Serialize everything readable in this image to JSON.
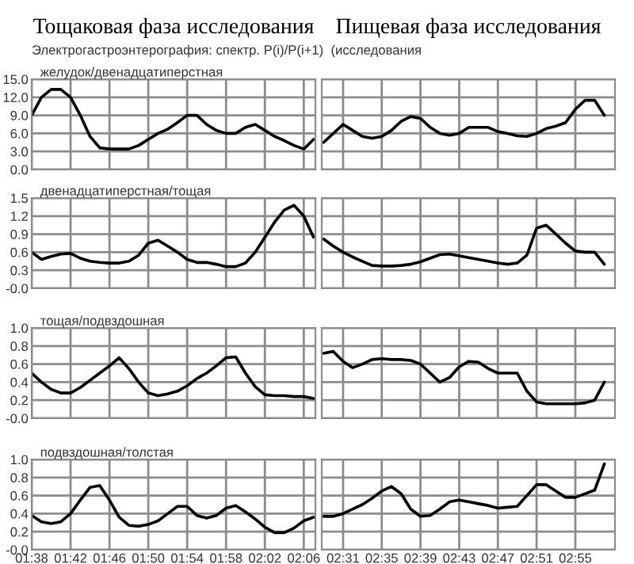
{
  "chart_data": [
    {
      "type": "line",
      "title": "Тощаковая фаза исследования",
      "subtitle": "желудок/двенадцатиперстная",
      "annotations": [
        "Электрогастроэнтерография: спектр. P(i)/P(i+1)  (исследования"
      ],
      "color": "#000000",
      "grid": true,
      "tick_labels": "y",
      "x": [
        1.6333,
        1.65,
        1.6667,
        1.6833,
        1.7,
        1.7167,
        1.7333,
        1.75,
        1.7667,
        1.7833,
        1.8,
        1.8167,
        1.8333,
        1.85,
        1.8667,
        1.8833,
        1.9,
        1.9167,
        1.9333,
        1.95,
        1.9667,
        1.9833,
        2,
        2.0167,
        2.0333,
        2.05,
        2.0667,
        2.0833,
        2.1,
        2.1167
      ],
      "values": [
        9.0,
        12.0,
        13.3,
        13.3,
        12.0,
        9.0,
        5.5,
        3.6,
        3.4,
        3.4,
        3.4,
        4.0,
        5.0,
        6.0,
        6.7,
        7.8,
        9.0,
        9.0,
        7.5,
        6.5,
        6.0,
        6.0,
        7.0,
        7.5,
        6.5,
        5.5,
        4.8,
        4.0,
        3.4,
        5.0
      ],
      "xlim": [
        1.6333,
        2.12
      ],
      "xticks": [
        {
          "value": 1.6333,
          "label": null
        },
        {
          "value": 1.7,
          "label": null
        },
        {
          "value": 1.7667,
          "label": null
        },
        {
          "value": 1.8333,
          "label": null
        },
        {
          "value": 1.9,
          "label": null
        },
        {
          "value": 1.9667,
          "label": null
        },
        {
          "value": 2.0333,
          "label": null
        },
        {
          "value": 2.1,
          "label": null
        }
      ],
      "ylim": [
        0,
        15
      ],
      "yticks": [
        {
          "value": 0,
          "label": "0.0"
        },
        {
          "value": 3,
          "label": "3.0"
        },
        {
          "value": 6,
          "label": "6.0"
        },
        {
          "value": 9,
          "label": "9.0"
        },
        {
          "value": 12,
          "label": "12.0"
        },
        {
          "value": 15,
          "label": "15.0"
        }
      ]
    },
    {
      "type": "line",
      "title": "Пищевая фаза исследования",
      "color": "#000000",
      "grid": true,
      "tick_labels": false,
      "x": [
        2.4833,
        2.5,
        2.5167,
        2.5333,
        2.55,
        2.5667,
        2.5833,
        2.6,
        2.6167,
        2.6333,
        2.65,
        2.6667,
        2.6833,
        2.7,
        2.7167,
        2.7333,
        2.75,
        2.7667,
        2.7833,
        2.8,
        2.8167,
        2.8333,
        2.85,
        2.8667,
        2.8833,
        2.9,
        2.9167,
        2.9333,
        2.95,
        2.9667
      ],
      "values": [
        4.5,
        6.0,
        7.5,
        6.5,
        5.5,
        5.2,
        5.5,
        6.5,
        8.0,
        8.8,
        8.5,
        7.0,
        6.0,
        5.7,
        6.0,
        7.0,
        7.0,
        7.0,
        6.3,
        6.0,
        5.6,
        5.5,
        6.0,
        6.8,
        7.2,
        7.8,
        10.0,
        11.5,
        11.5,
        9.0
      ],
      "xlim": [
        2.48,
        2.985
      ],
      "xticks": [
        {
          "value": 2.5167,
          "label": null
        },
        {
          "value": 2.5833,
          "label": null
        },
        {
          "value": 2.65,
          "label": null
        },
        {
          "value": 2.7167,
          "label": null
        },
        {
          "value": 2.7833,
          "label": null
        },
        {
          "value": 2.85,
          "label": null
        },
        {
          "value": 2.9167,
          "label": null
        }
      ],
      "ylim": [
        0,
        15
      ],
      "yticks": [
        {
          "value": 0,
          "label": null
        },
        {
          "value": 3,
          "label": null
        },
        {
          "value": 6,
          "label": null
        },
        {
          "value": 9,
          "label": null
        },
        {
          "value": 12,
          "label": null
        },
        {
          "value": 15,
          "label": null
        }
      ]
    },
    {
      "type": "line",
      "subtitle": "двенадцатиперстная/тощая",
      "color": "#000000",
      "grid": true,
      "tick_labels": "y",
      "x": [
        1.6333,
        1.65,
        1.6667,
        1.6833,
        1.7,
        1.7167,
        1.7333,
        1.75,
        1.7667,
        1.7833,
        1.8,
        1.8167,
        1.8333,
        1.85,
        1.8667,
        1.8833,
        1.9,
        1.9167,
        1.9333,
        1.95,
        1.9667,
        1.9833,
        2,
        2.0167,
        2.0333,
        2.05,
        2.0667,
        2.0833,
        2.1,
        2.1167
      ],
      "values": [
        0.6,
        0.48,
        0.53,
        0.57,
        0.58,
        0.5,
        0.45,
        0.43,
        0.42,
        0.42,
        0.45,
        0.55,
        0.75,
        0.8,
        0.7,
        0.6,
        0.48,
        0.43,
        0.43,
        0.4,
        0.36,
        0.36,
        0.42,
        0.6,
        0.85,
        1.1,
        1.3,
        1.38,
        1.2,
        0.85
      ],
      "xlim": [
        1.6333,
        2.12
      ],
      "xticks": [
        {
          "value": 1.6333,
          "label": null
        },
        {
          "value": 1.7,
          "label": null
        },
        {
          "value": 1.7667,
          "label": null
        },
        {
          "value": 1.8333,
          "label": null
        },
        {
          "value": 1.9,
          "label": null
        },
        {
          "value": 1.9667,
          "label": null
        },
        {
          "value": 2.0333,
          "label": null
        },
        {
          "value": 2.1,
          "label": null
        }
      ],
      "ylim": [
        0,
        1.5
      ],
      "yticks": [
        {
          "value": 0,
          "label": "-0.0"
        },
        {
          "value": 0.3,
          "label": "0.3"
        },
        {
          "value": 0.6,
          "label": "0.6"
        },
        {
          "value": 0.9,
          "label": "0.9"
        },
        {
          "value": 1.2,
          "label": "1.2"
        },
        {
          "value": 1.5,
          "label": "1.5"
        }
      ]
    },
    {
      "type": "line",
      "color": "#000000",
      "grid": true,
      "tick_labels": false,
      "x": [
        2.4833,
        2.5,
        2.5167,
        2.5333,
        2.55,
        2.5667,
        2.5833,
        2.6,
        2.6167,
        2.6333,
        2.65,
        2.6667,
        2.6833,
        2.7,
        2.7167,
        2.7333,
        2.75,
        2.7667,
        2.7833,
        2.8,
        2.8167,
        2.8333,
        2.85,
        2.8667,
        2.8833,
        2.9,
        2.9167,
        2.9333,
        2.95,
        2.9667
      ],
      "values": [
        0.82,
        0.7,
        0.6,
        0.52,
        0.45,
        0.38,
        0.37,
        0.37,
        0.38,
        0.4,
        0.44,
        0.5,
        0.56,
        0.57,
        0.54,
        0.51,
        0.48,
        0.45,
        0.42,
        0.4,
        0.42,
        0.55,
        1.0,
        1.05,
        0.9,
        0.75,
        0.62,
        0.6,
        0.6,
        0.4
      ],
      "xlim": [
        2.48,
        2.985
      ],
      "xticks": [
        {
          "value": 2.5167,
          "label": null
        },
        {
          "value": 2.5833,
          "label": null
        },
        {
          "value": 2.65,
          "label": null
        },
        {
          "value": 2.7167,
          "label": null
        },
        {
          "value": 2.7833,
          "label": null
        },
        {
          "value": 2.85,
          "label": null
        },
        {
          "value": 2.9167,
          "label": null
        }
      ],
      "ylim": [
        0,
        1.5
      ],
      "yticks": [
        {
          "value": 0,
          "label": null
        },
        {
          "value": 0.3,
          "label": null
        },
        {
          "value": 0.6,
          "label": null
        },
        {
          "value": 0.9,
          "label": null
        },
        {
          "value": 1.2,
          "label": null
        },
        {
          "value": 1.5,
          "label": null
        }
      ]
    },
    {
      "type": "line",
      "subtitle": "тощая/подвздошная",
      "color": "#000000",
      "grid": true,
      "tick_labels": "y",
      "x": [
        1.6333,
        1.65,
        1.6667,
        1.6833,
        1.7,
        1.7167,
        1.7333,
        1.75,
        1.7667,
        1.7833,
        1.8,
        1.8167,
        1.8333,
        1.85,
        1.8667,
        1.8833,
        1.9,
        1.9167,
        1.9333,
        1.95,
        1.9667,
        1.9833,
        2,
        2.0167,
        2.0333,
        2.05,
        2.0667,
        2.0833,
        2.1,
        2.1167
      ],
      "values": [
        0.5,
        0.4,
        0.32,
        0.28,
        0.28,
        0.34,
        0.42,
        0.5,
        0.58,
        0.67,
        0.55,
        0.4,
        0.28,
        0.25,
        0.27,
        0.3,
        0.36,
        0.44,
        0.5,
        0.58,
        0.67,
        0.68,
        0.5,
        0.35,
        0.26,
        0.25,
        0.25,
        0.24,
        0.24,
        0.22
      ],
      "xlim": [
        1.6333,
        2.12
      ],
      "xticks": [
        {
          "value": 1.6333,
          "label": null
        },
        {
          "value": 1.7,
          "label": null
        },
        {
          "value": 1.7667,
          "label": null
        },
        {
          "value": 1.8333,
          "label": null
        },
        {
          "value": 1.9,
          "label": null
        },
        {
          "value": 1.9667,
          "label": null
        },
        {
          "value": 2.0333,
          "label": null
        },
        {
          "value": 2.1,
          "label": null
        }
      ],
      "ylim": [
        0,
        1
      ],
      "yticks": [
        {
          "value": 0,
          "label": "-0.0"
        },
        {
          "value": 0.2,
          "label": "0.2"
        },
        {
          "value": 0.4,
          "label": "0.4"
        },
        {
          "value": 0.6,
          "label": "0.6"
        },
        {
          "value": 0.8,
          "label": "0.8"
        },
        {
          "value": 1,
          "label": "1.0"
        }
      ]
    },
    {
      "type": "line",
      "color": "#000000",
      "grid": true,
      "tick_labels": false,
      "x": [
        2.4833,
        2.5,
        2.5167,
        2.5333,
        2.55,
        2.5667,
        2.5833,
        2.6,
        2.6167,
        2.6333,
        2.65,
        2.6667,
        2.6833,
        2.7,
        2.7167,
        2.7333,
        2.75,
        2.7667,
        2.7833,
        2.8,
        2.8167,
        2.8333,
        2.85,
        2.8667,
        2.8833,
        2.9,
        2.9167,
        2.9333,
        2.95,
        2.9667
      ],
      "values": [
        0.72,
        0.74,
        0.63,
        0.56,
        0.6,
        0.65,
        0.66,
        0.65,
        0.65,
        0.64,
        0.6,
        0.5,
        0.4,
        0.45,
        0.57,
        0.63,
        0.62,
        0.55,
        0.5,
        0.5,
        0.5,
        0.3,
        0.18,
        0.16,
        0.16,
        0.16,
        0.16,
        0.17,
        0.2,
        0.4
      ],
      "xlim": [
        2.48,
        2.985
      ],
      "xticks": [
        {
          "value": 2.5167,
          "label": null
        },
        {
          "value": 2.5833,
          "label": null
        },
        {
          "value": 2.65,
          "label": null
        },
        {
          "value": 2.7167,
          "label": null
        },
        {
          "value": 2.7833,
          "label": null
        },
        {
          "value": 2.85,
          "label": null
        },
        {
          "value": 2.9167,
          "label": null
        }
      ],
      "ylim": [
        0,
        1
      ],
      "yticks": [
        {
          "value": 0,
          "label": null
        },
        {
          "value": 0.2,
          "label": null
        },
        {
          "value": 0.4,
          "label": null
        },
        {
          "value": 0.6,
          "label": null
        },
        {
          "value": 0.8,
          "label": null
        },
        {
          "value": 1,
          "label": null
        }
      ]
    },
    {
      "type": "line",
      "subtitle": "подвздошная/толстая",
      "color": "#000000",
      "grid": true,
      "x": [
        1.6333,
        1.65,
        1.6667,
        1.6833,
        1.7,
        1.7167,
        1.7333,
        1.75,
        1.7667,
        1.7833,
        1.8,
        1.8167,
        1.8333,
        1.85,
        1.8667,
        1.8833,
        1.9,
        1.9167,
        1.9333,
        1.95,
        1.9667,
        1.9833,
        2,
        2.0167,
        2.0333,
        2.05,
        2.0667,
        2.0833,
        2.1,
        2.1167
      ],
      "values": [
        0.38,
        0.31,
        0.29,
        0.31,
        0.4,
        0.55,
        0.69,
        0.71,
        0.55,
        0.36,
        0.27,
        0.26,
        0.28,
        0.32,
        0.4,
        0.48,
        0.48,
        0.38,
        0.35,
        0.38,
        0.46,
        0.49,
        0.42,
        0.34,
        0.25,
        0.19,
        0.19,
        0.24,
        0.32,
        0.36
      ],
      "xlim": [
        1.6333,
        2.12
      ],
      "xticks": [
        {
          "value": 1.6333,
          "label": "01:38"
        },
        {
          "value": 1.7,
          "label": "01:42"
        },
        {
          "value": 1.7667,
          "label": "01:46"
        },
        {
          "value": 1.8333,
          "label": "01:50"
        },
        {
          "value": 1.9,
          "label": "01:54"
        },
        {
          "value": 1.9667,
          "label": "01:58"
        },
        {
          "value": 2.0333,
          "label": "02:02"
        },
        {
          "value": 2.1,
          "label": "02:06"
        }
      ],
      "ylim": [
        0,
        1
      ],
      "yticks": [
        {
          "value": 0,
          "label": "-0.0"
        },
        {
          "value": 0.2,
          "label": "0.2"
        },
        {
          "value": 0.4,
          "label": "0.4"
        },
        {
          "value": 0.6,
          "label": "0.6"
        },
        {
          "value": 0.8,
          "label": "0.8"
        },
        {
          "value": 1,
          "label": "1.0"
        }
      ]
    },
    {
      "type": "line",
      "color": "#000000",
      "grid": true,
      "tick_labels": "x",
      "x": [
        2.4833,
        2.5,
        2.5167,
        2.5333,
        2.55,
        2.5667,
        2.5833,
        2.6,
        2.6167,
        2.6333,
        2.65,
        2.6667,
        2.6833,
        2.7,
        2.7167,
        2.7333,
        2.75,
        2.7667,
        2.7833,
        2.8,
        2.8167,
        2.8333,
        2.85,
        2.8667,
        2.8833,
        2.9,
        2.9167,
        2.9333,
        2.95,
        2.9667
      ],
      "values": [
        0.37,
        0.37,
        0.4,
        0.45,
        0.5,
        0.57,
        0.65,
        0.7,
        0.62,
        0.45,
        0.37,
        0.38,
        0.45,
        0.53,
        0.55,
        0.53,
        0.51,
        0.49,
        0.46,
        0.47,
        0.48,
        0.6,
        0.72,
        0.72,
        0.65,
        0.58,
        0.58,
        0.62,
        0.66,
        0.95
      ],
      "xlim": [
        2.48,
        2.985
      ],
      "xticks": [
        {
          "value": 2.5167,
          "label": "02:31"
        },
        {
          "value": 2.5833,
          "label": "02:35"
        },
        {
          "value": 2.65,
          "label": "02:39"
        },
        {
          "value": 2.7167,
          "label": "02:43"
        },
        {
          "value": 2.7833,
          "label": "02:47"
        },
        {
          "value": 2.85,
          "label": "02:51"
        },
        {
          "value": 2.9167,
          "label": "02:55"
        }
      ],
      "ylim": [
        0,
        1
      ],
      "yticks": [
        {
          "value": 0,
          "label": null
        },
        {
          "value": 0.2,
          "label": null
        },
        {
          "value": 0.4,
          "label": null
        },
        {
          "value": 0.6,
          "label": null
        },
        {
          "value": 0.8,
          "label": null
        },
        {
          "value": 1,
          "label": null
        }
      ]
    }
  ]
}
